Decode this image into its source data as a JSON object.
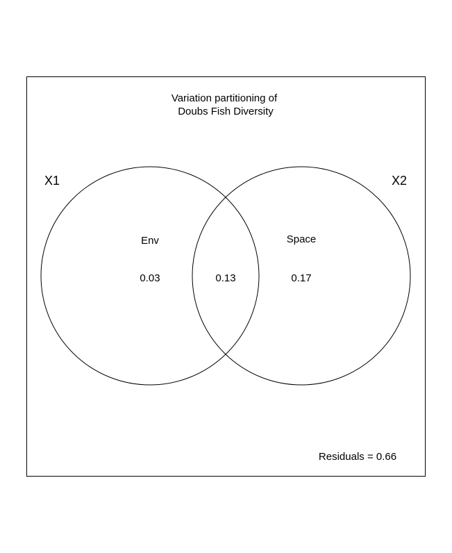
{
  "title": {
    "line1": "Variation partitioning of",
    "line2": "Doubs Fish Diversity"
  },
  "sets": [
    {
      "id": "x1",
      "label": "X1",
      "name": "Env",
      "unique_fraction": "0.03"
    },
    {
      "id": "x2",
      "label": "X2",
      "name": "Space",
      "unique_fraction": "0.17"
    }
  ],
  "shared_fraction": "0.13",
  "residuals_text": "Residuals = 0.66",
  "colors": {
    "line": "#000000",
    "background": "#ffffff"
  }
}
